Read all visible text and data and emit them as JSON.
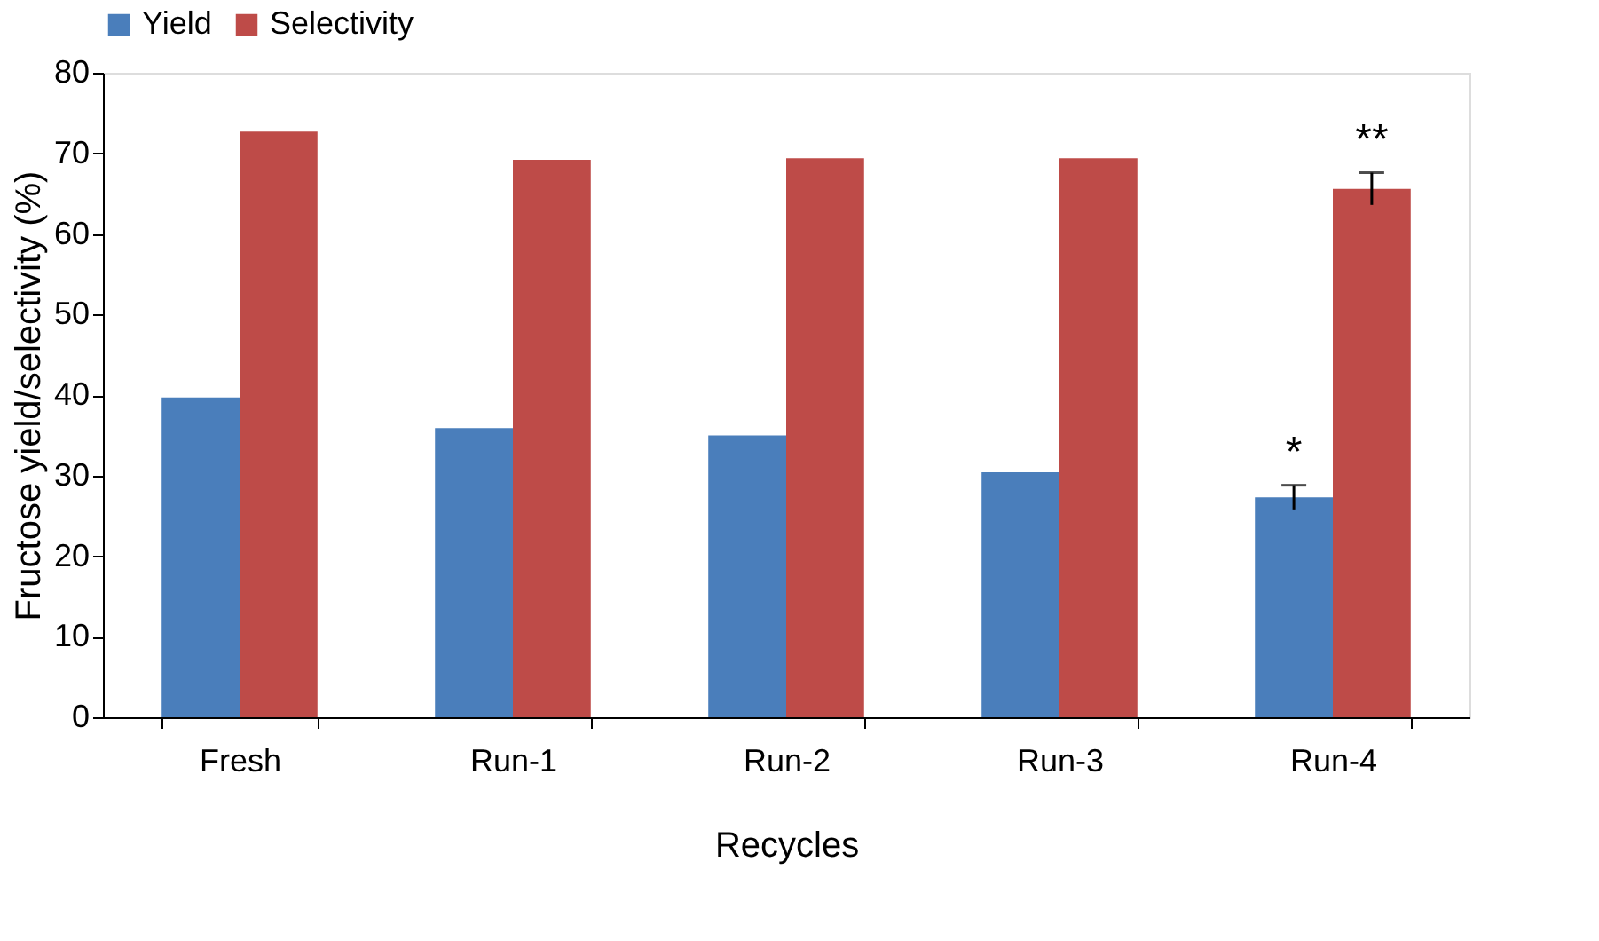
{
  "chart_data": {
    "type": "bar",
    "xlabel": "Recycles",
    "ylabel": "Fructose yield/selectivity (%)",
    "categories": [
      "Fresh",
      "Run-1",
      "Run-2",
      "Run-3",
      "Run-4"
    ],
    "series": [
      {
        "name": "Yield",
        "color": "#4a7ebb",
        "values": [
          39.7,
          35.9,
          35.0,
          30.4,
          27.3
        ],
        "errors": [
          null,
          null,
          null,
          null,
          1.5
        ]
      },
      {
        "name": "Selectivity",
        "color": "#be4b48",
        "values": [
          72.7,
          69.2,
          69.4,
          69.4,
          65.6
        ],
        "errors": [
          null,
          null,
          null,
          null,
          2.0
        ]
      }
    ],
    "ylim": [
      0,
      80
    ],
    "yticks": [
      0,
      10,
      20,
      30,
      40,
      50,
      60,
      70,
      80
    ],
    "grid": false,
    "legend": "top",
    "annotations": [
      {
        "text": "*",
        "x": "Run-4",
        "y": 27.3
      },
      {
        "text": "**",
        "x": "Run-4",
        "y": 65.6
      }
    ]
  }
}
